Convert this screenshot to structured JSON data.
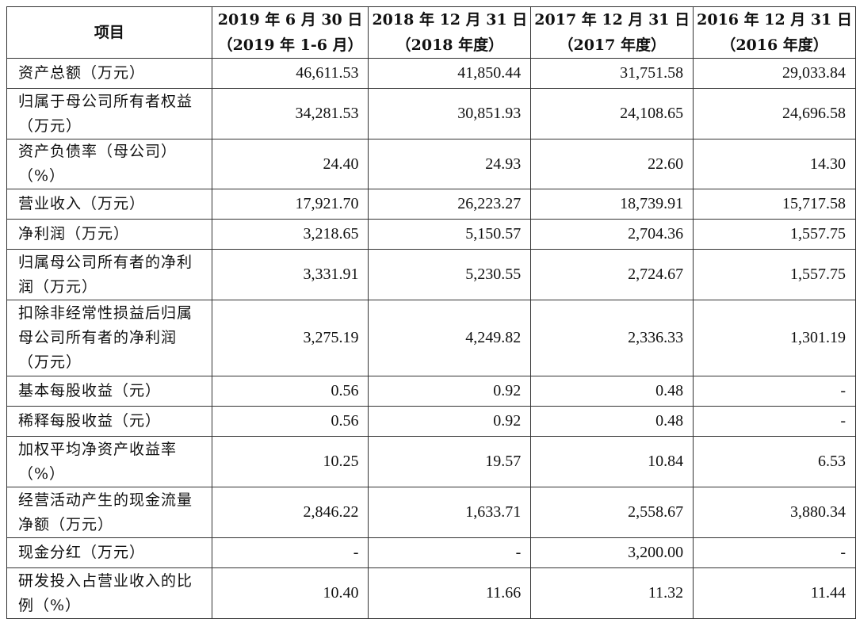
{
  "table": {
    "headers": [
      {
        "line1": "项目",
        "line2": ""
      },
      {
        "line1": "2019 年 6 月 30 日",
        "line2": "（2019 年 1-6 月）"
      },
      {
        "line1": "2018 年 12 月 31 日",
        "line2": "（2018 年度）"
      },
      {
        "line1": "2017 年 12 月 31 日",
        "line2": "（2017 年度）"
      },
      {
        "line1": "2016 年 12 月 31 日",
        "line2": "（2016 年度）"
      }
    ],
    "rows": [
      {
        "label": "资产总额（万元）",
        "values": [
          "46,611.53",
          "41,850.44",
          "31,751.58",
          "29,033.84"
        ]
      },
      {
        "label": "归属于母公司所有者权益（万元）",
        "values": [
          "34,281.53",
          "30,851.93",
          "24,108.65",
          "24,696.58"
        ]
      },
      {
        "label": "资产负债率（母公司）（%）",
        "values": [
          "24.40",
          "24.93",
          "22.60",
          "14.30"
        ]
      },
      {
        "label": "营业收入（万元）",
        "values": [
          "17,921.70",
          "26,223.27",
          "18,739.91",
          "15,717.58"
        ]
      },
      {
        "label": "净利润（万元）",
        "values": [
          "3,218.65",
          "5,150.57",
          "2,704.36",
          "1,557.75"
        ]
      },
      {
        "label": "归属母公司所有者的净利润（万元）",
        "values": [
          "3,331.91",
          "5,230.55",
          "2,724.67",
          "1,557.75"
        ]
      },
      {
        "label": "扣除非经常性损益后归属母公司所有者的净利润（万元）",
        "values": [
          "3,275.19",
          "4,249.82",
          "2,336.33",
          "1,301.19"
        ]
      },
      {
        "label": "基本每股收益（元）",
        "values": [
          "0.56",
          "0.92",
          "0.48",
          "-"
        ]
      },
      {
        "label": "稀释每股收益（元）",
        "values": [
          "0.56",
          "0.92",
          "0.48",
          "-"
        ]
      },
      {
        "label": "加权平均净资产收益率（%）",
        "values": [
          "10.25",
          "19.57",
          "10.84",
          "6.53"
        ]
      },
      {
        "label": "经营活动产生的现金流量净额（万元）",
        "values": [
          "2,846.22",
          "1,633.71",
          "2,558.67",
          "3,880.34"
        ]
      },
      {
        "label": "现金分红（万元）",
        "values": [
          "-",
          "-",
          "3,200.00",
          "-"
        ]
      },
      {
        "label": "研发投入占营业收入的比例（%）",
        "values": [
          "10.40",
          "11.66",
          "11.32",
          "11.44"
        ]
      }
    ]
  }
}
